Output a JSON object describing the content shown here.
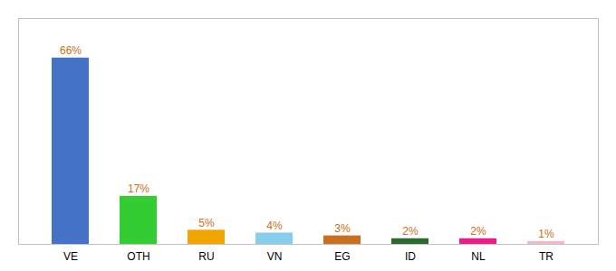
{
  "chart_data": {
    "type": "bar",
    "categories": [
      "VE",
      "OTH",
      "RU",
      "VN",
      "EG",
      "ID",
      "NL",
      "TR"
    ],
    "values": [
      66,
      17,
      5,
      4,
      3,
      2,
      2,
      1
    ],
    "value_labels": [
      "66%",
      "17%",
      "5%",
      "4%",
      "3%",
      "2%",
      "2%",
      "1%"
    ],
    "colors": [
      "#4472c4",
      "#33cc33",
      "#f0a500",
      "#87ceeb",
      "#c87020",
      "#2d6a2d",
      "#e91e8c",
      "#f4b8c8"
    ],
    "ylim": [
      0,
      80
    ],
    "data_labels": true,
    "tick_labels": "x"
  }
}
